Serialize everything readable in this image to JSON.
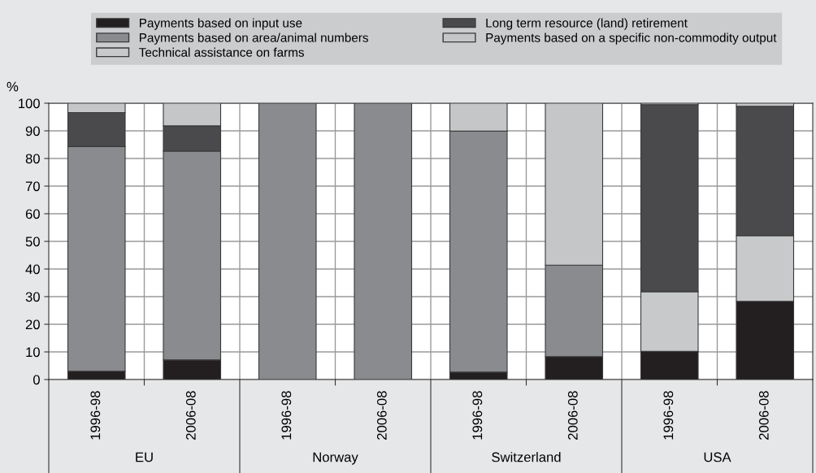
{
  "chart_data": {
    "type": "bar",
    "stacked": true,
    "ylabel": "%",
    "categories": [
      "1996-98",
      "2006-08",
      "1996-98",
      "2006-08",
      "1996-98",
      "2006-08",
      "1996-98",
      "2006-08"
    ],
    "annotations": [
      "EU",
      "Norway",
      "Switzerland",
      "USA"
    ],
    "series": [
      {
        "name": "Payments based on input use",
        "color": "#231f20",
        "values": [
          3,
          7.1,
          0,
          0,
          2.7,
          8.3,
          10.2,
          28.3
        ]
      },
      {
        "name": "Payments based on area/animal numbers",
        "color": "#8a8b8e",
        "values": [
          81.3,
          75.6,
          100,
          100,
          87.2,
          33.1,
          0,
          0
        ]
      },
      {
        "name": "Technical assistance on farms",
        "color": "#c8c9cb",
        "values": [
          0,
          0,
          0,
          0,
          0,
          0,
          21.6,
          23.8
        ]
      },
      {
        "name": "Long term resource (land) retirement",
        "color": "#4a4a4c",
        "values": [
          12.3,
          9.1,
          0,
          0,
          0,
          0,
          67.7,
          46.8
        ]
      },
      {
        "name": "Payments based on a specific non-commodity output",
        "color": "#c5c6c8",
        "values": [
          3.4,
          8.2,
          0,
          0,
          10.1,
          58.6,
          0.5,
          1.1
        ]
      }
    ],
    "ylim": [
      0,
      100
    ],
    "yticks": [
      0,
      10,
      20,
      30,
      40,
      50,
      60,
      70,
      80,
      90,
      100
    ],
    "grid": true,
    "legend": "top"
  }
}
